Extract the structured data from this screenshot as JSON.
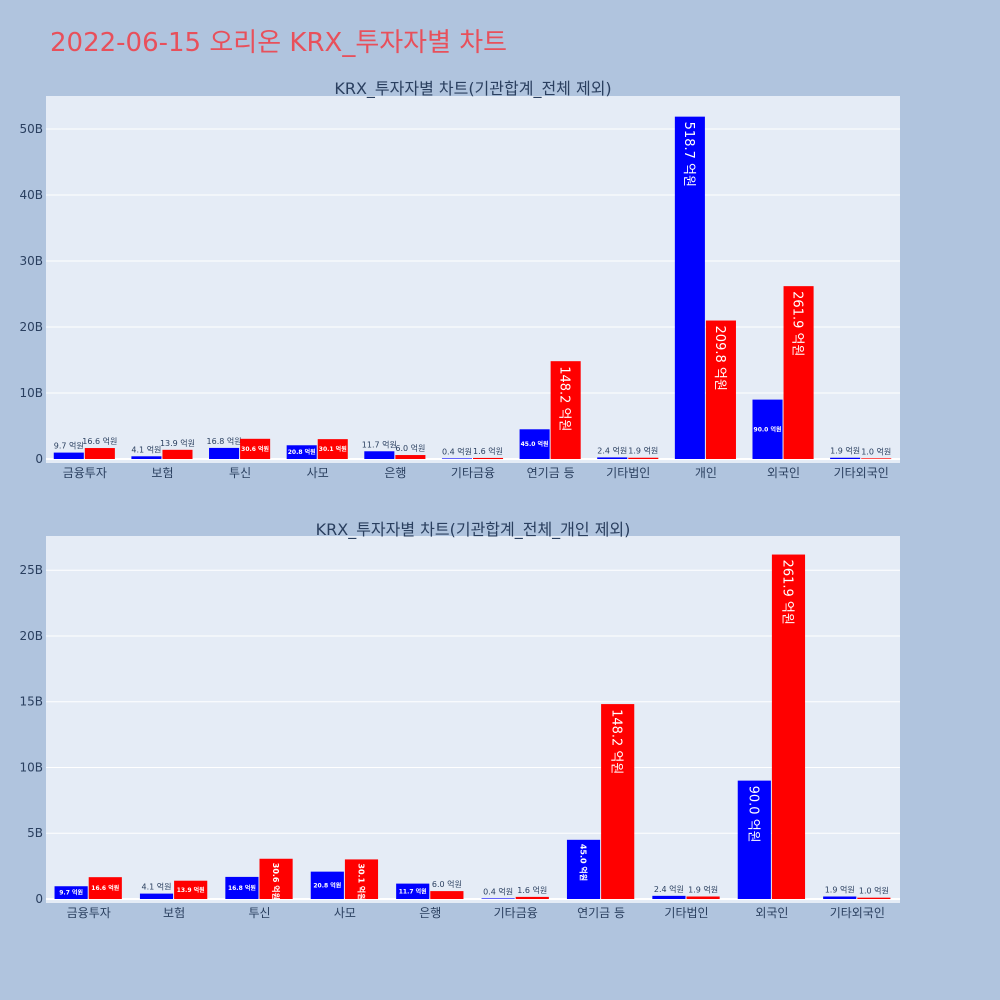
{
  "page": {
    "title": "2022-06-15 오리온 KRX_투자자별 차트"
  },
  "colors": {
    "background": "#b0c4de",
    "plot_bg": "#e5ecf6",
    "buy": "#0000ff",
    "sell": "#ff0000",
    "title": "#e8505b"
  },
  "chart_data": [
    {
      "type": "bar",
      "title": "KRX_투자자별 차트(기관합계_전체 제외)",
      "categories": [
        "금융투자",
        "보험",
        "투신",
        "사모",
        "은행",
        "기타금융",
        "연기금 등",
        "기타법인",
        "개인",
        "외국인",
        "기타외국인"
      ],
      "series": [
        {
          "color": "#0000ff",
          "values": [
            0.97,
            0.41,
            1.68,
            2.08,
            1.17,
            0.04,
            4.5,
            0.24,
            51.87,
            9.0,
            0.19
          ],
          "labels": [
            "9.7 억원",
            "4.1 억원",
            "16.8 억원",
            "20.8 억원",
            "11.7 억원",
            "0.4 억원",
            "45.0 억원",
            "2.4 억원",
            "518.7 억원",
            "90.0 억원",
            "1.9 억원"
          ]
        },
        {
          "color": "#ff0000",
          "values": [
            1.66,
            1.39,
            3.06,
            3.01,
            0.6,
            0.16,
            14.82,
            0.19,
            20.98,
            26.19,
            0.1
          ],
          "labels": [
            "16.6 억원",
            "13.9 억원",
            "30.6 억원",
            "30.1 억원",
            "6.0 억원",
            "1.6 억원",
            "148.2 억원",
            "1.9 억원",
            "209.8 억원",
            "261.9 억원",
            "1.0 억원"
          ]
        }
      ],
      "ylim": [
        0,
        55
      ],
      "yticks": [
        0,
        10,
        20,
        30,
        40,
        50
      ],
      "ytick_labels": [
        "0",
        "10B",
        "20B",
        "30B",
        "40B",
        "50B"
      ],
      "grid": true
    },
    {
      "type": "bar",
      "title": "KRX_투자자별 차트(기관합계_전체_개인 제외)",
      "categories": [
        "금융투자",
        "보험",
        "투신",
        "사모",
        "은행",
        "기타금융",
        "연기금 등",
        "기타법인",
        "외국인",
        "기타외국인"
      ],
      "series": [
        {
          "color": "#0000ff",
          "values": [
            0.97,
            0.41,
            1.68,
            2.08,
            1.17,
            0.04,
            4.5,
            0.24,
            9.0,
            0.19
          ],
          "labels": [
            "9.7 억원",
            "4.1 억원",
            "16.8 억원",
            "20.8 억원",
            "11.7 억원",
            "0.4 억원",
            "45.0 억원",
            "2.4 억원",
            "90.0 억원",
            "1.9 억원"
          ]
        },
        {
          "color": "#ff0000",
          "values": [
            1.66,
            1.39,
            3.06,
            3.01,
            0.6,
            0.16,
            14.82,
            0.19,
            26.19,
            0.1
          ],
          "labels": [
            "16.6 억원",
            "13.9 억원",
            "30.6 억원",
            "30.1 억원",
            "6.0 억원",
            "1.6 억원",
            "148.2 억원",
            "1.9 억원",
            "261.9 억원",
            "1.0 억원"
          ]
        }
      ],
      "ylim": [
        0,
        27.6
      ],
      "yticks": [
        0,
        5,
        10,
        15,
        20,
        25
      ],
      "ytick_labels": [
        "0",
        "5B",
        "10B",
        "15B",
        "20B",
        "25B"
      ],
      "grid": true
    }
  ]
}
